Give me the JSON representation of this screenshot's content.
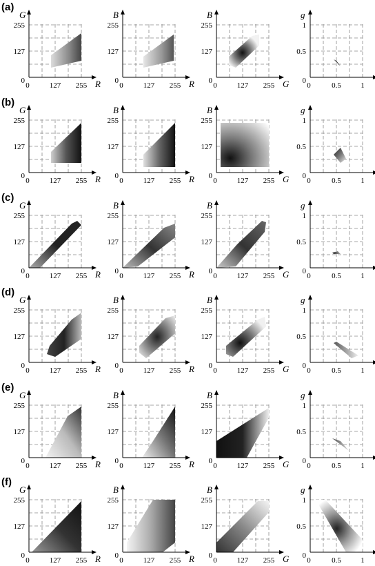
{
  "rows": [
    {
      "label": "(a)"
    },
    {
      "label": "(b)"
    },
    {
      "label": "(c)"
    },
    {
      "label": "(d)"
    },
    {
      "label": "(e)"
    },
    {
      "label": "(f)"
    }
  ],
  "panels": [
    {
      "xlabel": "R",
      "ylabel": "G",
      "xticks": [
        "0",
        "127",
        "255"
      ],
      "yticks": [
        "255",
        "127",
        "0"
      ]
    },
    {
      "xlabel": "R",
      "ylabel": "B",
      "xticks": [
        "0",
        "127",
        "255"
      ],
      "yticks": [
        "255",
        "127",
        "0"
      ]
    },
    {
      "xlabel": "G",
      "ylabel": "B",
      "xticks": [
        "0",
        "127",
        "255"
      ],
      "yticks": [
        "255",
        "127",
        "0"
      ]
    },
    {
      "xlabel": "r",
      "ylabel": "g",
      "xticks": [
        "0",
        "0.5",
        "1"
      ],
      "yticks": [
        "1",
        "0.5",
        "0"
      ]
    }
  ],
  "colors": {
    "axis": "#000000",
    "grid": "#8a8a8a",
    "shade_dark": "#111111",
    "shade_light": "#eeeeee"
  }
}
